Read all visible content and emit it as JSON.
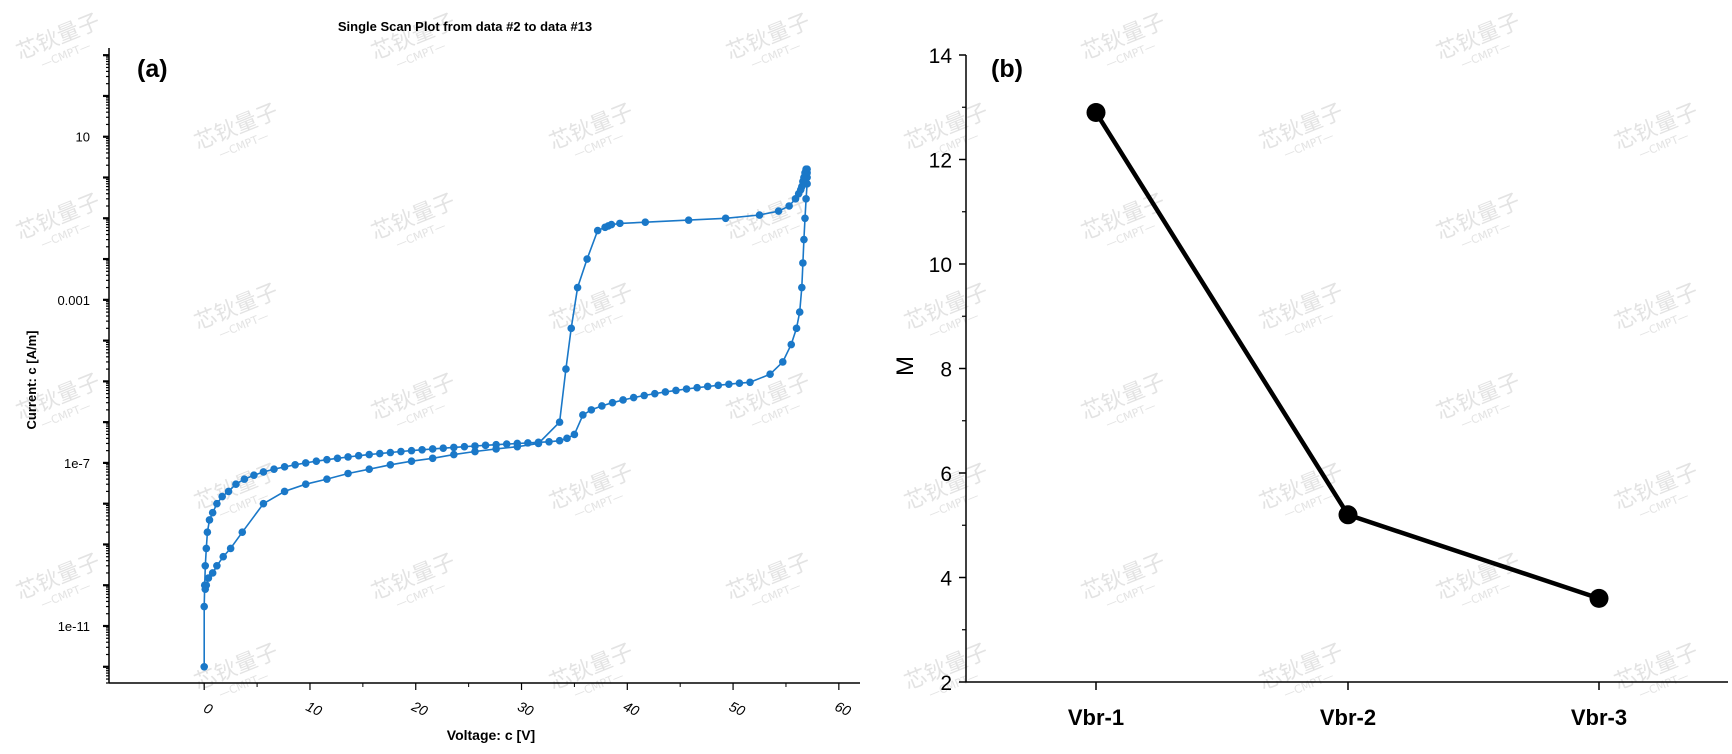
{
  "watermark": {
    "text": "芯钬量子",
    "subtext": "—CMPT—",
    "color": "#e3e3e3"
  },
  "chart_data": [
    {
      "type": "scatter",
      "panel_label": "(a)",
      "title": "Single Scan Plot from data #2 to data #13",
      "xlabel": "Voltage: c [V]",
      "ylabel": "Current: c [A/m]",
      "xlim": [
        -9,
        62
      ],
      "ylim": [
        4e-13,
        1500
      ],
      "yscale": "log",
      "x_ticks": [
        0,
        10,
        20,
        30,
        40,
        50,
        60
      ],
      "y_ticks": [
        10,
        0.001,
        1e-07,
        1e-11
      ],
      "y_tick_labels": [
        "10",
        "0.001",
        "1e-7",
        "1e-11"
      ],
      "color": "#1a78c8",
      "grid": false,
      "series": [
        {
          "x": [
            0,
            0,
            0.05,
            0.1,
            0.2,
            0.3,
            0.5,
            0.8,
            1.2,
            1.7,
            2.3,
            3,
            3.8,
            4.7,
            5.6,
            6.6,
            7.6,
            8.6,
            9.6,
            10.6,
            11.6,
            12.6,
            13.6,
            14.6,
            15.6,
            16.6,
            17.6,
            18.6,
            19.6,
            20.6,
            21.6,
            22.6,
            23.6,
            24.6,
            25.6,
            26.6,
            27.6,
            28.6,
            29.6,
            30.6,
            31.6,
            32.6,
            33.6,
            34.3,
            35,
            35.8,
            36.6,
            37.6,
            38.6,
            39.6,
            40.6,
            41.6,
            42.6,
            43.6,
            44.6,
            45.6,
            46.6,
            47.6,
            48.6,
            49.6,
            50.6,
            51.6,
            53.5,
            54.7,
            55.5,
            56,
            56.3,
            56.5,
            56.6,
            56.7,
            56.8,
            56.9,
            57,
            57,
            57,
            57,
            56.9,
            56.8,
            56.7,
            56.6,
            56.5,
            56.4,
            56.2,
            55.9,
            55.3,
            54.3,
            52.5,
            49.3,
            45.8,
            41.7,
            39.3,
            38.5,
            38.2,
            37.9,
            37.2,
            36.2,
            35.3,
            34.7,
            34.2,
            33.6,
            31.6,
            29.6,
            27.6,
            25.6,
            23.6,
            21.6,
            19.6,
            17.6,
            15.6,
            13.6,
            11.6,
            9.6,
            7.6,
            5.6,
            3.6,
            2.5,
            1.8,
            1.2,
            0.8,
            0.4,
            0.2,
            0.1
          ],
          "y": [
            1e-12,
            3e-11,
            1e-10,
            3e-10,
            8e-10,
            2e-09,
            4e-09,
            6e-09,
            1e-08,
            1.5e-08,
            2e-08,
            3e-08,
            4e-08,
            5e-08,
            6e-08,
            7e-08,
            8e-08,
            9e-08,
            1e-07,
            1.1e-07,
            1.2e-07,
            1.3e-07,
            1.4e-07,
            1.5e-07,
            1.6e-07,
            1.7e-07,
            1.8e-07,
            1.9e-07,
            2e-07,
            2.1e-07,
            2.2e-07,
            2.3e-07,
            2.4e-07,
            2.5e-07,
            2.6e-07,
            2.7e-07,
            2.8e-07,
            2.9e-07,
            3e-07,
            3.1e-07,
            3.2e-07,
            3.3e-07,
            3.5e-07,
            4e-07,
            5e-07,
            1.5e-06,
            2e-06,
            2.5e-06,
            3e-06,
            3.5e-06,
            4e-06,
            4.5e-06,
            5e-06,
            5.5e-06,
            6e-06,
            6.5e-06,
            7e-06,
            7.5e-06,
            8e-06,
            8.5e-06,
            9e-06,
            9.5e-06,
            1.5e-05,
            3e-05,
            8e-05,
            0.0002,
            0.0005,
            0.002,
            0.008,
            0.03,
            0.1,
            0.3,
            0.7,
            1,
            1.3,
            1.6,
            1.6,
            1.3,
            1,
            0.8,
            0.6,
            0.5,
            0.4,
            0.3,
            0.2,
            0.15,
            0.12,
            0.1,
            0.09,
            0.08,
            0.075,
            0.07,
            0.065,
            0.06,
            0.05,
            0.01,
            0.002,
            0.0002,
            2e-05,
            1e-06,
            3e-07,
            2.5e-07,
            2.2e-07,
            1.9e-07,
            1.6e-07,
            1.3e-07,
            1.1e-07,
            9e-08,
            7e-08,
            5.5e-08,
            4e-08,
            3e-08,
            2e-08,
            1e-08,
            2e-09,
            8e-10,
            5e-10,
            3e-10,
            2e-10,
            1.5e-10,
            1e-10,
            8e-11
          ]
        }
      ]
    },
    {
      "type": "line",
      "panel_label": "(b)",
      "title": "",
      "xlabel": "",
      "ylabel": "M",
      "categories": [
        "Vbr-1",
        "Vbr-2",
        "Vbr-3"
      ],
      "values": [
        12.9,
        5.2,
        3.6
      ],
      "ylim": [
        2,
        14
      ],
      "y_ticks": [
        2,
        4,
        6,
        8,
        10,
        12,
        14
      ],
      "color": "#000000",
      "grid": false
    }
  ]
}
